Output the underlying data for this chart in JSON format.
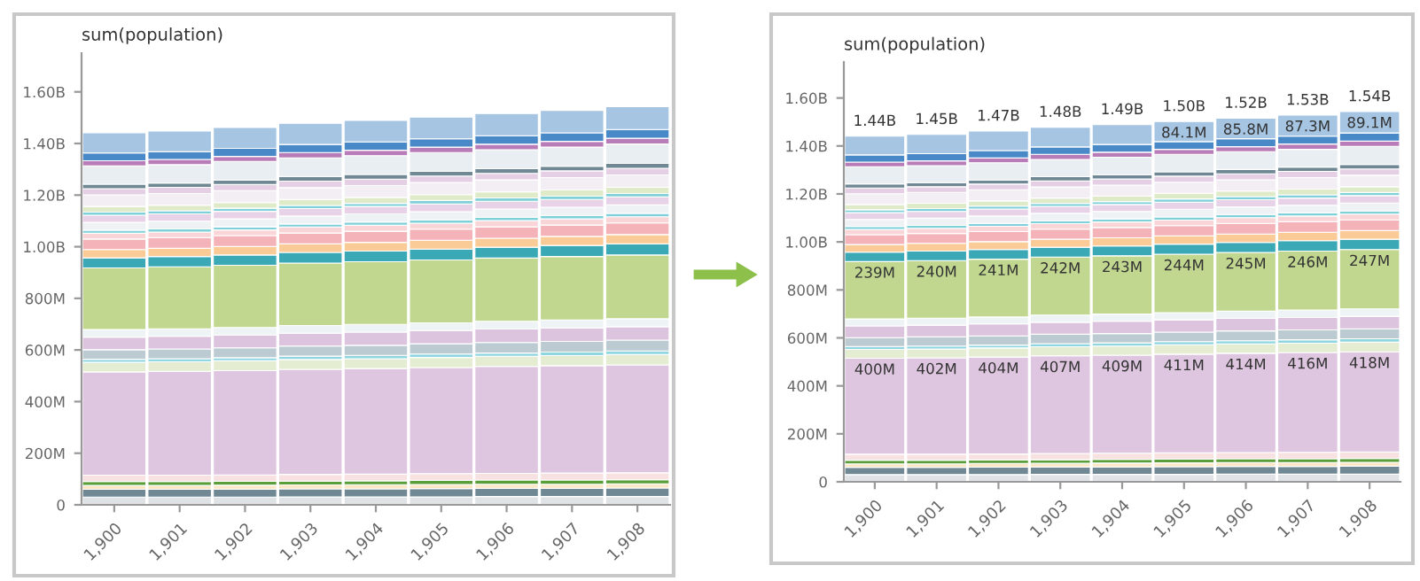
{
  "chart_data": [
    {
      "type": "bar",
      "stacked": true,
      "ylabel": "sum(population)",
      "categories": [
        "1,900",
        "1,901",
        "1,902",
        "1,903",
        "1,904",
        "1,905",
        "1,906",
        "1,907",
        "1,908"
      ],
      "ylim": [
        0,
        1750000000
      ],
      "yticks": [
        {
          "value": 0,
          "label": "0"
        },
        {
          "value": 200000000,
          "label": "200M"
        },
        {
          "value": 400000000,
          "label": "400M"
        },
        {
          "value": 600000000,
          "label": "600M"
        },
        {
          "value": 800000000,
          "label": "800M"
        },
        {
          "value": 1000000000,
          "label": "1.00B"
        },
        {
          "value": 1200000000,
          "label": "1.20B"
        },
        {
          "value": 1400000000,
          "label": "1.40B"
        },
        {
          "value": 1600000000,
          "label": "1.60B"
        }
      ],
      "grid": false,
      "series": [
        {
          "color": "#dfe3e6",
          "values": [
            30000000,
            30000000,
            30000000,
            31000000,
            31000000,
            31000000,
            32000000,
            32000000,
            32000000
          ]
        },
        {
          "color": "#6f8894",
          "values": [
            30000000,
            30000000,
            31000000,
            31000000,
            31000000,
            32000000,
            32000000,
            32000000,
            33000000
          ]
        },
        {
          "color": "#fbe7c6",
          "values": [
            15000000,
            15000000,
            15000000,
            15000000,
            16000000,
            16000000,
            16000000,
            16000000,
            16000000
          ]
        },
        {
          "color": "#5a9e3a",
          "values": [
            15000000,
            15000000,
            15000000,
            15000000,
            15000000,
            16000000,
            16000000,
            16000000,
            16000000
          ]
        },
        {
          "color": "#f7e1e1",
          "values": [
            25000000,
            25000000,
            25000000,
            26000000,
            26000000,
            26000000,
            26000000,
            27000000,
            27000000
          ]
        },
        {
          "color": "#dfc6e0",
          "values": [
            400000000,
            402000000,
            404000000,
            407000000,
            409000000,
            411000000,
            414000000,
            416000000,
            418000000
          ]
        },
        {
          "color": "#e4edd2",
          "values": [
            37000000,
            37000000,
            38000000,
            38000000,
            38000000,
            39000000,
            39000000,
            39000000,
            40000000
          ]
        },
        {
          "color": "#8fd6e0",
          "values": [
            12000000,
            12000000,
            12000000,
            13000000,
            13000000,
            13000000,
            13000000,
            14000000,
            14000000
          ]
        },
        {
          "color": "#bccbd1",
          "values": [
            37000000,
            38000000,
            38000000,
            39000000,
            39000000,
            40000000,
            41000000,
            41000000,
            42000000
          ]
        },
        {
          "color": "#dcc3de",
          "values": [
            49000000,
            49000000,
            50000000,
            50000000,
            51000000,
            51000000,
            52000000,
            52000000,
            52000000
          ]
        },
        {
          "color": "#eef3f5",
          "values": [
            29000000,
            29000000,
            29000000,
            30000000,
            30000000,
            30000000,
            30000000,
            31000000,
            31000000
          ]
        },
        {
          "color": "#c1d78f",
          "values": [
            239000000,
            240000000,
            241000000,
            242000000,
            243000000,
            244000000,
            245000000,
            246000000,
            247000000
          ]
        },
        {
          "color": "#3ba9b5",
          "values": [
            39000000,
            40000000,
            40000000,
            41000000,
            41000000,
            42000000,
            42000000,
            43000000,
            43000000
          ]
        },
        {
          "color": "#fbcb97",
          "values": [
            32000000,
            32000000,
            33000000,
            33000000,
            34000000,
            34000000,
            35000000,
            35000000,
            36000000
          ]
        },
        {
          "color": "#f4b3b8",
          "values": [
            41000000,
            41000000,
            42000000,
            42000000,
            43000000,
            43000000,
            44000000,
            44000000,
            45000000
          ]
        },
        {
          "color": "#f9d5d8",
          "values": [
            22000000,
            22000000,
            22000000,
            23000000,
            23000000,
            23000000,
            24000000,
            24000000,
            24000000
          ]
        },
        {
          "color": "#7fd0d9",
          "values": [
            12000000,
            12000000,
            12000000,
            12000000,
            13000000,
            13000000,
            13000000,
            13000000,
            13000000
          ]
        },
        {
          "color": "#eef2f4",
          "values": [
            30000000,
            30000000,
            31000000,
            31000000,
            31000000,
            32000000,
            32000000,
            32000000,
            33000000
          ]
        },
        {
          "color": "#e8d2e8",
          "values": [
            28000000,
            28000000,
            29000000,
            29000000,
            29000000,
            30000000,
            30000000,
            30000000,
            31000000
          ]
        },
        {
          "color": "#7fd0d9",
          "values": [
            12000000,
            12000000,
            12000000,
            12000000,
            12000000,
            13000000,
            13000000,
            13000000,
            13000000
          ]
        },
        {
          "color": "#dfeac8",
          "values": [
            22000000,
            22000000,
            22000000,
            23000000,
            23000000,
            23000000,
            23000000,
            24000000,
            24000000
          ]
        },
        {
          "color": "#f3eef3",
          "values": [
            45000000,
            45000000,
            46000000,
            46000000,
            46000000,
            47000000,
            47000000,
            48000000,
            48000000
          ]
        },
        {
          "color": "#e5cfe5",
          "values": [
            24000000,
            24000000,
            24000000,
            25000000,
            25000000,
            25000000,
            25000000,
            26000000,
            26000000
          ]
        },
        {
          "color": "#6f8894",
          "values": [
            17000000,
            17000000,
            17000000,
            18000000,
            18000000,
            18000000,
            18000000,
            18000000,
            19000000
          ]
        },
        {
          "color": "#e9eef2",
          "values": [
            71000000,
            71000000,
            72000000,
            72000000,
            73000000,
            73000000,
            74000000,
            74000000,
            75000000
          ]
        },
        {
          "color": "#b87db8",
          "values": [
            20000000,
            20000000,
            20000000,
            21000000,
            21000000,
            21000000,
            21000000,
            22000000,
            22000000
          ]
        },
        {
          "color": "#4a89c8",
          "values": [
            30000000,
            30000000,
            31000000,
            31000000,
            32000000,
            32000000,
            33000000,
            33000000,
            34000000
          ]
        },
        {
          "color": "#a6c5e3",
          "values": [
            78000000,
            80000000,
            81000000,
            82000000,
            83000000,
            84000000,
            86000000,
            87000000,
            89000000
          ]
        }
      ]
    },
    {
      "type": "bar",
      "stacked": true,
      "ylabel": "sum(population)",
      "categories": [
        "1,900",
        "1,901",
        "1,902",
        "1,903",
        "1,904",
        "1,905",
        "1,906",
        "1,907",
        "1,908"
      ],
      "ylim": [
        0,
        1750000000
      ],
      "yticks": [
        {
          "value": 0,
          "label": "0"
        },
        {
          "value": 200000000,
          "label": "200M"
        },
        {
          "value": 400000000,
          "label": "400M"
        },
        {
          "value": 600000000,
          "label": "600M"
        },
        {
          "value": 800000000,
          "label": "800M"
        },
        {
          "value": 1000000000,
          "label": "1.00B"
        },
        {
          "value": 1200000000,
          "label": "1.20B"
        },
        {
          "value": 1400000000,
          "label": "1.40B"
        },
        {
          "value": 1600000000,
          "label": "1.60B"
        }
      ],
      "grid": false,
      "totals": [
        "1.44B",
        "1.45B",
        "1.47B",
        "1.48B",
        "1.49B",
        "1.50B",
        "1.52B",
        "1.53B",
        "1.54B"
      ],
      "series": [
        {
          "color": "#dfe3e6",
          "values": [
            30000000,
            30000000,
            30000000,
            31000000,
            31000000,
            31000000,
            32000000,
            32000000,
            32000000
          ]
        },
        {
          "color": "#6f8894",
          "values": [
            30000000,
            30000000,
            31000000,
            31000000,
            31000000,
            32000000,
            32000000,
            32000000,
            33000000
          ]
        },
        {
          "color": "#fbe7c6",
          "values": [
            15000000,
            15000000,
            15000000,
            15000000,
            16000000,
            16000000,
            16000000,
            16000000,
            16000000
          ]
        },
        {
          "color": "#5a9e3a",
          "values": [
            15000000,
            15000000,
            15000000,
            15000000,
            15000000,
            16000000,
            16000000,
            16000000,
            16000000
          ]
        },
        {
          "color": "#f7e1e1",
          "values": [
            25000000,
            25000000,
            25000000,
            26000000,
            26000000,
            26000000,
            26000000,
            27000000,
            27000000
          ]
        },
        {
          "color": "#dfc6e0",
          "values": [
            400000000,
            402000000,
            404000000,
            407000000,
            409000000,
            411000000,
            414000000,
            416000000,
            418000000
          ],
          "value_labels": [
            "400M",
            "402M",
            "404M",
            "407M",
            "409M",
            "411M",
            "414M",
            "416M",
            "418M"
          ]
        },
        {
          "color": "#e4edd2",
          "values": [
            37000000,
            37000000,
            38000000,
            38000000,
            38000000,
            39000000,
            39000000,
            39000000,
            40000000
          ]
        },
        {
          "color": "#8fd6e0",
          "values": [
            12000000,
            12000000,
            12000000,
            13000000,
            13000000,
            13000000,
            13000000,
            14000000,
            14000000
          ]
        },
        {
          "color": "#bccbd1",
          "values": [
            37000000,
            38000000,
            38000000,
            39000000,
            39000000,
            40000000,
            41000000,
            41000000,
            42000000
          ]
        },
        {
          "color": "#dcc3de",
          "values": [
            49000000,
            49000000,
            50000000,
            50000000,
            51000000,
            51000000,
            52000000,
            52000000,
            52000000
          ]
        },
        {
          "color": "#eef3f5",
          "values": [
            29000000,
            29000000,
            29000000,
            30000000,
            30000000,
            30000000,
            30000000,
            31000000,
            31000000
          ]
        },
        {
          "color": "#c1d78f",
          "values": [
            239000000,
            240000000,
            241000000,
            242000000,
            243000000,
            244000000,
            245000000,
            246000000,
            247000000
          ],
          "value_labels": [
            "239M",
            "240M",
            "241M",
            "242M",
            "243M",
            "244M",
            "245M",
            "246M",
            "247M"
          ]
        },
        {
          "color": "#3ba9b5",
          "values": [
            39000000,
            40000000,
            40000000,
            41000000,
            41000000,
            42000000,
            42000000,
            43000000,
            43000000
          ]
        },
        {
          "color": "#fbcb97",
          "values": [
            32000000,
            32000000,
            33000000,
            33000000,
            34000000,
            34000000,
            35000000,
            35000000,
            36000000
          ]
        },
        {
          "color": "#f4b3b8",
          "values": [
            41000000,
            41000000,
            42000000,
            42000000,
            43000000,
            43000000,
            44000000,
            44000000,
            45000000
          ]
        },
        {
          "color": "#f9d5d8",
          "values": [
            22000000,
            22000000,
            22000000,
            23000000,
            23000000,
            23000000,
            24000000,
            24000000,
            24000000
          ]
        },
        {
          "color": "#7fd0d9",
          "values": [
            12000000,
            12000000,
            12000000,
            12000000,
            13000000,
            13000000,
            13000000,
            13000000,
            13000000
          ]
        },
        {
          "color": "#eef2f4",
          "values": [
            30000000,
            30000000,
            31000000,
            31000000,
            31000000,
            32000000,
            32000000,
            32000000,
            33000000
          ]
        },
        {
          "color": "#e8d2e8",
          "values": [
            28000000,
            28000000,
            29000000,
            29000000,
            29000000,
            30000000,
            30000000,
            30000000,
            31000000
          ]
        },
        {
          "color": "#7fd0d9",
          "values": [
            12000000,
            12000000,
            12000000,
            12000000,
            12000000,
            13000000,
            13000000,
            13000000,
            13000000
          ]
        },
        {
          "color": "#dfeac8",
          "values": [
            22000000,
            22000000,
            22000000,
            23000000,
            23000000,
            23000000,
            23000000,
            24000000,
            24000000
          ]
        },
        {
          "color": "#f3eef3",
          "values": [
            45000000,
            45000000,
            46000000,
            46000000,
            46000000,
            47000000,
            47000000,
            48000000,
            48000000
          ]
        },
        {
          "color": "#e5cfe5",
          "values": [
            24000000,
            24000000,
            24000000,
            25000000,
            25000000,
            25000000,
            25000000,
            26000000,
            26000000
          ]
        },
        {
          "color": "#6f8894",
          "values": [
            17000000,
            17000000,
            17000000,
            18000000,
            18000000,
            18000000,
            18000000,
            18000000,
            19000000
          ]
        },
        {
          "color": "#e9eef2",
          "values": [
            71000000,
            71000000,
            72000000,
            72000000,
            73000000,
            73000000,
            74000000,
            74000000,
            75000000
          ]
        },
        {
          "color": "#b87db8",
          "values": [
            20000000,
            20000000,
            20000000,
            21000000,
            21000000,
            21000000,
            21000000,
            22000000,
            22000000
          ]
        },
        {
          "color": "#4a89c8",
          "values": [
            30000000,
            30000000,
            31000000,
            31000000,
            32000000,
            32000000,
            33000000,
            33000000,
            34000000
          ]
        },
        {
          "color": "#a6c5e3",
          "values": [
            78000000,
            80000000,
            81000000,
            82000000,
            83000000,
            84100000,
            85800000,
            87300000,
            89100000
          ],
          "value_labels": [
            null,
            null,
            null,
            null,
            null,
            "84.1M",
            "85.8M",
            "87.3M",
            "89.1M"
          ]
        }
      ]
    }
  ]
}
